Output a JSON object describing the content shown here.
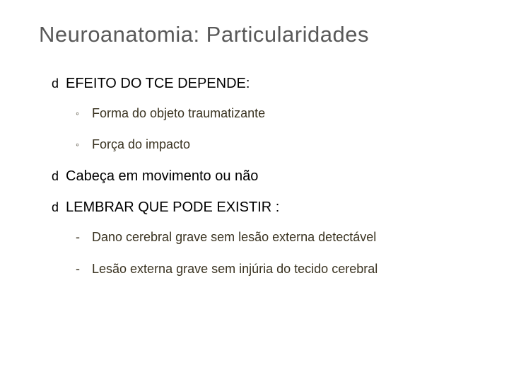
{
  "slide": {
    "title": "Neuroanatomia:  Particularidades",
    "title_color": "#595959",
    "title_fontsize": 31,
    "background_color": "#ffffff",
    "items": [
      {
        "level": 1,
        "bullet": "d",
        "text": "EFEITO DO TCE DEPENDE:"
      },
      {
        "level": 2,
        "bullet": "◦",
        "style": "circ",
        "text": "Forma do objeto traumatizante"
      },
      {
        "level": 2,
        "bullet": "◦",
        "style": "circ",
        "text": "Força do impacto"
      },
      {
        "level": 1,
        "bullet": "d",
        "text": "Cabeça em movimento ou não"
      },
      {
        "level": 1,
        "bullet": "d",
        "text": "LEMBRAR QUE PODE EXISTIR :"
      },
      {
        "level": 2,
        "bullet": "-",
        "style": "dash",
        "text": "Dano cerebral grave sem lesão externa detectável"
      },
      {
        "level": 2,
        "bullet": "-",
        "style": "dash",
        "text": "Lesão externa grave sem injúria do tecido cerebral"
      }
    ],
    "lvl1_color": "#000000",
    "lvl1_fontsize": 20,
    "lvl2_color": "#3a3321",
    "lvl2_fontsize": 18
  }
}
